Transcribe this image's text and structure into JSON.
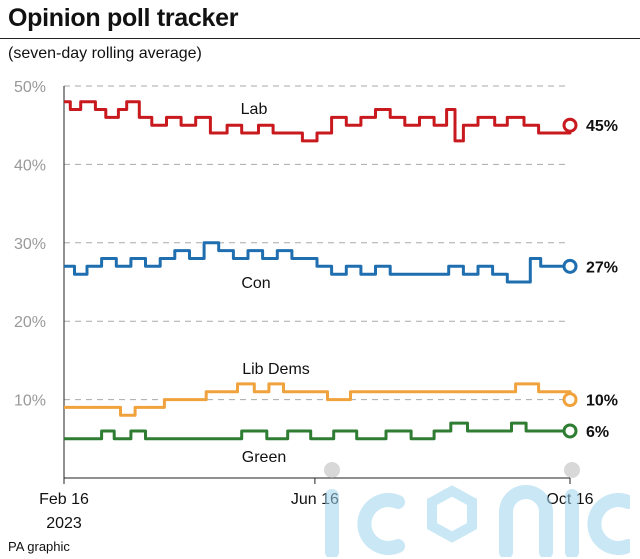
{
  "header": {
    "title": "Opinion poll tracker",
    "subtitle": "(seven-day rolling average)"
  },
  "footer": {
    "credit": "PA graphic"
  },
  "watermark": {
    "text": "iconic"
  },
  "chart_data": {
    "type": "line",
    "title": "Opinion poll tracker",
    "subtitle": "(seven-day rolling average)",
    "x_range": [
      "2023-02-16",
      "2023-10-16"
    ],
    "ylim": [
      0,
      50
    ],
    "yticks": [
      10,
      20,
      30,
      40,
      50
    ],
    "ytick_labels": [
      "10%",
      "20%",
      "30%",
      "40%",
      "50%"
    ],
    "xtick_labels": [
      {
        "date": "2023-02-16",
        "lines": [
          "Feb 16",
          "2023"
        ]
      },
      {
        "date": "2023-06-16",
        "lines": [
          "Jun 16"
        ]
      },
      {
        "date": "2023-10-16",
        "lines": [
          "Oct 16"
        ]
      }
    ],
    "grid": "horizontal dashed",
    "series": [
      {
        "name": "Lab",
        "color": "#c8191e",
        "end_label": "45%",
        "points": [
          [
            "2023-02-16",
            48
          ],
          [
            "2023-02-19",
            47
          ],
          [
            "2023-02-24",
            48
          ],
          [
            "2023-03-03",
            47
          ],
          [
            "2023-03-08",
            46
          ],
          [
            "2023-03-14",
            47
          ],
          [
            "2023-03-18",
            48
          ],
          [
            "2023-03-24",
            46
          ],
          [
            "2023-03-30",
            45
          ],
          [
            "2023-04-06",
            46
          ],
          [
            "2023-04-13",
            45
          ],
          [
            "2023-04-20",
            46
          ],
          [
            "2023-04-27",
            44
          ],
          [
            "2023-05-05",
            45
          ],
          [
            "2023-05-12",
            44
          ],
          [
            "2023-05-20",
            45
          ],
          [
            "2023-05-27",
            44
          ],
          [
            "2023-06-03",
            44
          ],
          [
            "2023-06-10",
            43
          ],
          [
            "2023-06-17",
            44
          ],
          [
            "2023-06-24",
            46
          ],
          [
            "2023-07-01",
            45
          ],
          [
            "2023-07-08",
            46
          ],
          [
            "2023-07-15",
            47
          ],
          [
            "2023-07-22",
            46
          ],
          [
            "2023-07-29",
            45
          ],
          [
            "2023-08-05",
            46
          ],
          [
            "2023-08-12",
            45
          ],
          [
            "2023-08-18",
            47
          ],
          [
            "2023-08-22",
            43
          ],
          [
            "2023-08-26",
            45
          ],
          [
            "2023-09-02",
            46
          ],
          [
            "2023-09-10",
            45
          ],
          [
            "2023-09-16",
            46
          ],
          [
            "2023-09-24",
            45
          ],
          [
            "2023-10-01",
            44
          ],
          [
            "2023-10-16",
            45
          ]
        ]
      },
      {
        "name": "Con",
        "color": "#1f6fb0",
        "end_label": "27%",
        "points": [
          [
            "2023-02-16",
            27
          ],
          [
            "2023-02-21",
            26
          ],
          [
            "2023-02-27",
            27
          ],
          [
            "2023-03-06",
            28
          ],
          [
            "2023-03-13",
            27
          ],
          [
            "2023-03-20",
            28
          ],
          [
            "2023-03-27",
            27
          ],
          [
            "2023-04-03",
            28
          ],
          [
            "2023-04-10",
            29
          ],
          [
            "2023-04-17",
            28
          ],
          [
            "2023-04-24",
            30
          ],
          [
            "2023-05-01",
            29
          ],
          [
            "2023-05-08",
            28
          ],
          [
            "2023-05-15",
            29
          ],
          [
            "2023-05-22",
            28
          ],
          [
            "2023-05-29",
            29
          ],
          [
            "2023-06-05",
            28
          ],
          [
            "2023-06-12",
            28
          ],
          [
            "2023-06-17",
            27
          ],
          [
            "2023-06-24",
            26
          ],
          [
            "2023-07-01",
            27
          ],
          [
            "2023-07-08",
            26
          ],
          [
            "2023-07-15",
            27
          ],
          [
            "2023-07-22",
            26
          ],
          [
            "2023-08-05",
            26
          ],
          [
            "2023-08-19",
            27
          ],
          [
            "2023-08-26",
            26
          ],
          [
            "2023-09-02",
            27
          ],
          [
            "2023-09-09",
            26
          ],
          [
            "2023-09-16",
            25
          ],
          [
            "2023-09-23",
            25
          ],
          [
            "2023-09-27",
            28
          ],
          [
            "2023-10-02",
            27
          ],
          [
            "2023-10-16",
            27
          ]
        ]
      },
      {
        "name": "Lib Dems",
        "color": "#f0a23c",
        "end_label": "10%",
        "points": [
          [
            "2023-02-16",
            9
          ],
          [
            "2023-03-01",
            9
          ],
          [
            "2023-03-10",
            9
          ],
          [
            "2023-03-15",
            8
          ],
          [
            "2023-03-22",
            9
          ],
          [
            "2023-04-05",
            10
          ],
          [
            "2023-04-19",
            10
          ],
          [
            "2023-04-25",
            11
          ],
          [
            "2023-05-03",
            11
          ],
          [
            "2023-05-10",
            12
          ],
          [
            "2023-05-18",
            11
          ],
          [
            "2023-05-25",
            12
          ],
          [
            "2023-06-01",
            11
          ],
          [
            "2023-06-15",
            11
          ],
          [
            "2023-06-22",
            10
          ],
          [
            "2023-07-03",
            11
          ],
          [
            "2023-07-17",
            11
          ],
          [
            "2023-07-25",
            11
          ],
          [
            "2023-08-01",
            11
          ],
          [
            "2023-08-10",
            11
          ],
          [
            "2023-08-20",
            11
          ],
          [
            "2023-09-01",
            11
          ],
          [
            "2023-09-10",
            11
          ],
          [
            "2023-09-20",
            12
          ],
          [
            "2023-10-01",
            11
          ],
          [
            "2023-10-16",
            10
          ]
        ]
      },
      {
        "name": "Green",
        "color": "#2e7d32",
        "end_label": "6%",
        "points": [
          [
            "2023-02-16",
            5
          ],
          [
            "2023-02-28",
            5
          ],
          [
            "2023-03-06",
            6
          ],
          [
            "2023-03-12",
            5
          ],
          [
            "2023-03-20",
            6
          ],
          [
            "2023-03-27",
            5
          ],
          [
            "2023-04-03",
            5
          ],
          [
            "2023-04-17",
            5
          ],
          [
            "2023-05-01",
            5
          ],
          [
            "2023-05-12",
            6
          ],
          [
            "2023-05-24",
            5
          ],
          [
            "2023-06-03",
            6
          ],
          [
            "2023-06-14",
            5
          ],
          [
            "2023-06-25",
            6
          ],
          [
            "2023-07-06",
            5
          ],
          [
            "2023-07-20",
            6
          ],
          [
            "2023-08-01",
            5
          ],
          [
            "2023-08-12",
            6
          ],
          [
            "2023-08-20",
            7
          ],
          [
            "2023-08-28",
            6
          ],
          [
            "2023-09-10",
            6
          ],
          [
            "2023-09-18",
            7
          ],
          [
            "2023-09-25",
            6
          ],
          [
            "2023-10-03",
            6
          ],
          [
            "2023-10-16",
            6
          ]
        ]
      }
    ]
  }
}
